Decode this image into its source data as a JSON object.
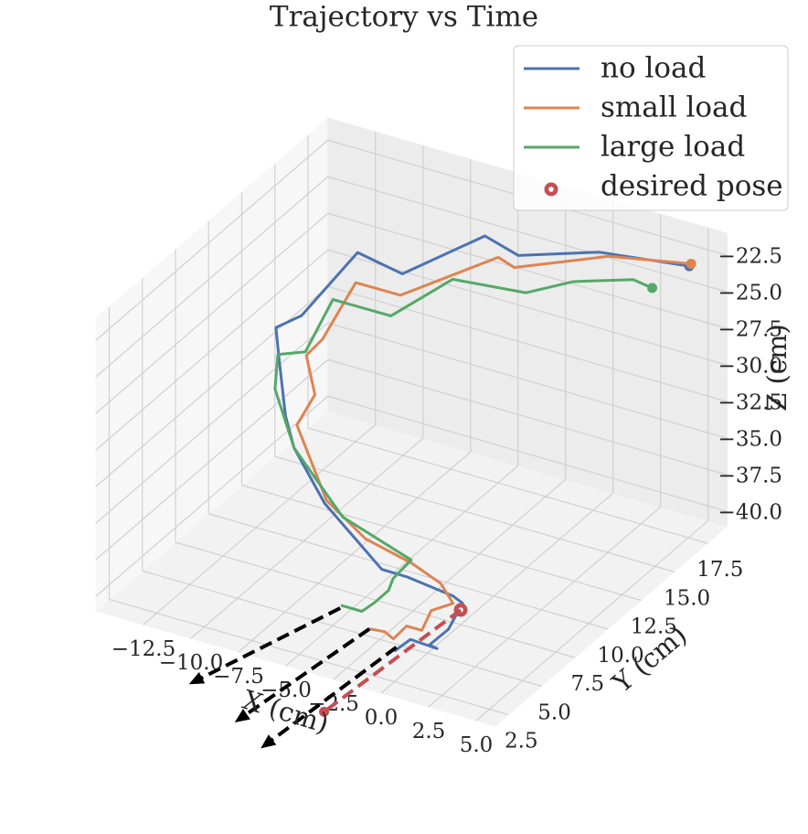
{
  "chart_data": {
    "type": "line3d",
    "title": "Trajectory vs Time",
    "x_label": "X (cm)",
    "y_label": "Y (cm)",
    "z_label": "Z (cm)",
    "xlim": [
      -15,
      6
    ],
    "ylim": [
      1.5,
      19
    ],
    "zlim": [
      -41,
      -21
    ],
    "xticks": [
      {
        "value": -12.5,
        "label": "−12.5"
      },
      {
        "value": -10,
        "label": "−10.0"
      },
      {
        "value": -7.5,
        "label": "−7.5"
      },
      {
        "value": -5,
        "label": "−5.0"
      },
      {
        "value": -2.5,
        "label": "−2.5"
      },
      {
        "value": 0,
        "label": "0.0"
      },
      {
        "value": 2.5,
        "label": "2.5"
      },
      {
        "value": 5,
        "label": "5.0"
      }
    ],
    "yticks": [
      2.5,
      {
        "value": 5,
        "label": "5.0"
      },
      7.5,
      {
        "value": 10,
        "label": "10.0"
      },
      12.5,
      {
        "value": 15,
        "label": "15.0"
      },
      17.5
    ],
    "zticks": [
      {
        "value": -22.5,
        "label": "−22.5"
      },
      {
        "value": -25,
        "label": "−25.0"
      },
      {
        "value": -27.5,
        "label": "−27.5"
      },
      {
        "value": -30,
        "label": "−30.0"
      },
      {
        "value": -32.5,
        "label": "−32.5"
      },
      {
        "value": -35,
        "label": "−35.0"
      },
      {
        "value": -37.5,
        "label": "−37.5"
      },
      {
        "value": -40,
        "label": "−40.0"
      }
    ],
    "grid": true,
    "legend": "upper right",
    "marker_at_start": true,
    "series": [
      {
        "name": "no load",
        "type": "line",
        "color": "#4c72b0",
        "x": [
          5.4,
          1.0,
          -2.9,
          -4.3,
          -8.3,
          -10.3,
          -12.9,
          -13.9,
          -13.4,
          -12.7,
          -11.9,
          -8.9,
          -4.5,
          -2.8,
          -0.4,
          0.1,
          0.4,
          0.1,
          0.5,
          -0.9,
          -1.4
        ],
        "y": [
          17,
          16.5,
          16,
          15.5,
          15,
          14.5,
          14,
          13.5,
          13,
          12.5,
          12,
          10,
          8,
          7.5,
          7.5,
          7.5,
          6,
          5,
          5,
          5,
          4.5
        ],
        "z": [
          -21.9,
          -22.2,
          -23.5,
          -22.3,
          -26.0,
          -24.9,
          -29.8,
          -30.6,
          -32.0,
          -35.4,
          -36.9,
          -38.0,
          -39.3,
          -38.8,
          -39.2,
          -39.5,
          -40.0,
          -40.4,
          -40.5,
          -40.4,
          -41.0
        ]
      },
      {
        "name": "small load",
        "type": "line",
        "color": "#dd8452",
        "x": [
          5.5,
          1.5,
          -3.1,
          -3.6,
          -8.4,
          -10.4,
          -11.8,
          -12.3,
          -11.5,
          -12.1,
          -9.5,
          -6.4,
          -3.3,
          -1.4,
          -0.4,
          -1.2,
          -1.0,
          -1.8,
          -1.8,
          -2.6,
          -3.4
        ],
        "y": [
          17,
          16.5,
          16,
          15.5,
          15,
          14.5,
          14,
          13.5,
          13,
          12.5,
          11,
          9.5,
          8.5,
          8,
          7.5,
          7,
          6,
          6,
          5,
          5.5,
          5.5
        ],
        "z": [
          -21.7,
          -22.3,
          -24.4,
          -23.5,
          -27.5,
          -27.0,
          -31.0,
          -31.9,
          -33.9,
          -35.8,
          -38.8,
          -39.1,
          -38.8,
          -39.1,
          -39.7,
          -40.1,
          -40.6,
          -40.6,
          -40.7,
          -40.9,
          -41.0
        ]
      },
      {
        "name": "large load",
        "type": "line",
        "color": "#55a868",
        "x": [
          3.8,
          2.8,
          0.0,
          -2.5,
          -6.0,
          -8.9,
          -11.6,
          -12.7,
          -13.8,
          -13.6,
          -11.9,
          -8.3,
          -3.3,
          -3.9,
          -3.8,
          -4.2,
          -4.5,
          -5.6
        ],
        "y": [
          16.5,
          16.5,
          16,
          16,
          15.5,
          15,
          14.5,
          14,
          13.5,
          13,
          12,
          10.5,
          8.5,
          8,
          7.5,
          7,
          6.5,
          6.5
        ],
        "z": [
          -23.6,
          -23.4,
          -24.2,
          -25.9,
          -25.9,
          -29.1,
          -28.6,
          -32.2,
          -32.4,
          -34.3,
          -36.9,
          -39.1,
          -38.6,
          -39.7,
          -40.1,
          -40.7,
          -41.0,
          -41.0
        ]
      },
      {
        "name": "desired pose",
        "type": "scatter",
        "color": "#c44e52",
        "x": [
          0.0
        ],
        "y": [
          7.5
        ],
        "z": [
          -40.0
        ]
      }
    ],
    "arrows": [
      {
        "color": "#c44e52",
        "head": "dot",
        "x": [
          0.0,
          -1.4
        ],
        "y": [
          7.5,
          -0.8
        ],
        "z": [
          -40.0,
          -41
        ]
      },
      {
        "color": "#000000",
        "head": "arrow",
        "x": [
          -5.5,
          -7.9
        ],
        "y": [
          6.3,
          -1.3
        ],
        "z": [
          -41,
          -41
        ]
      },
      {
        "color": "#000000",
        "head": "arrow",
        "x": [
          -3.4,
          -4.4
        ],
        "y": [
          5.5,
          -2.9
        ],
        "z": [
          -41,
          -41
        ]
      },
      {
        "color": "#000000",
        "head": "arrow",
        "x": [
          -1.5,
          -2.2
        ],
        "y": [
          4.8,
          -4.1
        ],
        "z": [
          -41,
          -41
        ]
      }
    ]
  }
}
